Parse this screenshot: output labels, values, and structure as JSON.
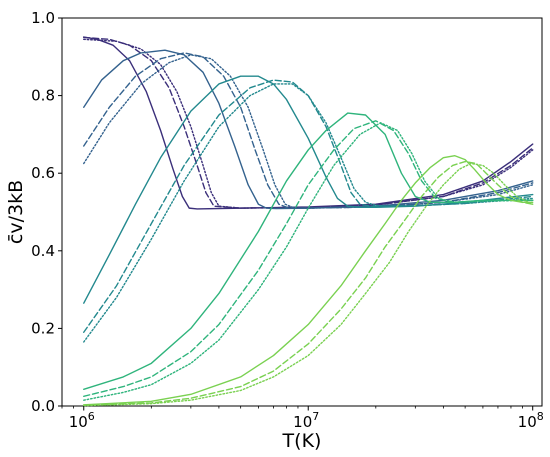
{
  "chart_data": {
    "type": "line",
    "xlabel": "T(K)",
    "ylabel": "c̄v/3kB",
    "xscale": "log",
    "xlim": [
      800000,
      110000000
    ],
    "ylim": [
      0.0,
      1.0
    ],
    "grid": false,
    "x_ticks": [
      {
        "value": 1000000,
        "base": "10",
        "exp": "6"
      },
      {
        "value": 10000000,
        "base": "10",
        "exp": "7"
      },
      {
        "value": 100000000,
        "base": "10",
        "exp": "8"
      }
    ],
    "y_ticks": [
      {
        "value": 0.0,
        "label": "0.0"
      },
      {
        "value": 0.2,
        "label": "0.2"
      },
      {
        "value": 0.4,
        "label": "0.4"
      },
      {
        "value": 0.6,
        "label": "0.6"
      },
      {
        "value": 0.8,
        "label": "0.8"
      },
      {
        "value": 1.0,
        "label": "1.0"
      }
    ],
    "series": [
      {
        "color": "#3b2f7a",
        "dash": "solid",
        "x": [
          1000000,
          1150000,
          1350000,
          1600000,
          1900000,
          2200000,
          2500000,
          2750000,
          2950000,
          3200000,
          5000000,
          10000000,
          20000000,
          40000000,
          60000000,
          80000000,
          100000000
        ],
        "y": [
          0.951,
          0.945,
          0.93,
          0.89,
          0.81,
          0.71,
          0.61,
          0.54,
          0.51,
          0.508,
          0.51,
          0.513,
          0.52,
          0.545,
          0.58,
          0.63,
          0.675
        ]
      },
      {
        "color": "#3b2f7a",
        "dash": "dashed",
        "x": [
          1000000,
          1300000,
          1600000,
          2000000,
          2400000,
          2800000,
          3200000,
          3500000,
          3800000,
          5000000,
          10000000,
          20000000,
          40000000,
          60000000,
          80000000,
          100000000
        ],
        "y": [
          0.95,
          0.945,
          0.93,
          0.89,
          0.82,
          0.72,
          0.62,
          0.55,
          0.515,
          0.51,
          0.512,
          0.518,
          0.54,
          0.575,
          0.62,
          0.665
        ]
      },
      {
        "color": "#3b2f7a",
        "dash": "dotted",
        "x": [
          1000000,
          1400000,
          1800000,
          2200000,
          2600000,
          3000000,
          3400000,
          3700000,
          4000000,
          5000000,
          10000000,
          20000000,
          40000000,
          60000000,
          80000000,
          100000000
        ],
        "y": [
          0.945,
          0.94,
          0.92,
          0.88,
          0.81,
          0.72,
          0.62,
          0.55,
          0.515,
          0.51,
          0.512,
          0.518,
          0.54,
          0.57,
          0.615,
          0.66
        ]
      },
      {
        "color": "#34628e",
        "dash": "solid",
        "x": [
          1000000,
          1200000,
          1500000,
          1800000,
          2300000,
          2800000,
          3400000,
          4000000,
          4700000,
          5400000,
          6000000,
          6500000,
          7200000,
          10000000,
          20000000,
          40000000,
          70000000,
          100000000
        ],
        "y": [
          0.77,
          0.84,
          0.89,
          0.91,
          0.917,
          0.905,
          0.86,
          0.78,
          0.67,
          0.57,
          0.52,
          0.51,
          0.509,
          0.51,
          0.515,
          0.53,
          0.555,
          0.58
        ]
      },
      {
        "color": "#34628e",
        "dash": "dashed",
        "x": [
          1000000,
          1300000,
          1700000,
          2200000,
          2800000,
          3400000,
          4200000,
          5000000,
          5800000,
          6600000,
          7400000,
          8200000,
          10000000,
          20000000,
          40000000,
          70000000,
          100000000
        ],
        "y": [
          0.67,
          0.77,
          0.85,
          0.895,
          0.91,
          0.9,
          0.85,
          0.77,
          0.66,
          0.57,
          0.52,
          0.51,
          0.51,
          0.513,
          0.525,
          0.55,
          0.575
        ]
      },
      {
        "color": "#34628e",
        "dash": "dotted",
        "x": [
          1000000,
          1300000,
          1800000,
          2400000,
          3000000,
          3700000,
          4500000,
          5400000,
          6300000,
          7100000,
          7900000,
          8700000,
          10000000,
          20000000,
          40000000,
          70000000,
          100000000
        ],
        "y": [
          0.625,
          0.73,
          0.83,
          0.885,
          0.905,
          0.895,
          0.85,
          0.77,
          0.66,
          0.57,
          0.52,
          0.51,
          0.51,
          0.513,
          0.525,
          0.545,
          0.57
        ]
      },
      {
        "color": "#23898e",
        "dash": "solid",
        "x": [
          1000000,
          1300000,
          1700000,
          2200000,
          3000000,
          4000000,
          5000000,
          6000000,
          7000000,
          8000000,
          10000000,
          12000000,
          13500000,
          15000000,
          17000000,
          20000000,
          30000000,
          50000000,
          100000000
        ],
        "y": [
          0.265,
          0.39,
          0.52,
          0.64,
          0.76,
          0.83,
          0.85,
          0.85,
          0.83,
          0.79,
          0.69,
          0.59,
          0.535,
          0.515,
          0.512,
          0.512,
          0.515,
          0.525,
          0.545
        ]
      },
      {
        "color": "#23898e",
        "dash": "dashed",
        "x": [
          1000000,
          1400000,
          2000000,
          2800000,
          4000000,
          5500000,
          7000000,
          8500000,
          10000000,
          12000000,
          14000000,
          15500000,
          17000000,
          19000000,
          22000000,
          30000000,
          50000000,
          100000000
        ],
        "y": [
          0.19,
          0.31,
          0.47,
          0.62,
          0.75,
          0.82,
          0.84,
          0.835,
          0.8,
          0.72,
          0.62,
          0.55,
          0.52,
          0.515,
          0.515,
          0.516,
          0.522,
          0.54
        ]
      },
      {
        "color": "#23898e",
        "dash": "dotted",
        "x": [
          1000000,
          1400000,
          2000000,
          2800000,
          4000000,
          5500000,
          7000000,
          8500000,
          10000000,
          12000000,
          14000000,
          16000000,
          18000000,
          20000000,
          23000000,
          30000000,
          50000000,
          100000000
        ],
        "y": [
          0.165,
          0.28,
          0.43,
          0.58,
          0.72,
          0.8,
          0.83,
          0.83,
          0.8,
          0.73,
          0.64,
          0.56,
          0.525,
          0.517,
          0.515,
          0.516,
          0.522,
          0.535
        ]
      },
      {
        "color": "#2fb47c",
        "dash": "solid",
        "x": [
          1000000,
          1500000,
          2000000,
          3000000,
          4000000,
          6000000,
          8000000,
          10000000,
          12000000,
          15000000,
          18000000,
          22000000,
          26000000,
          30000000,
          35000000,
          45000000,
          60000000,
          100000000
        ],
        "y": [
          0.043,
          0.075,
          0.11,
          0.2,
          0.29,
          0.45,
          0.58,
          0.66,
          0.71,
          0.755,
          0.75,
          0.7,
          0.6,
          0.54,
          0.525,
          0.525,
          0.53,
          0.53
        ]
      },
      {
        "color": "#2fb47c",
        "dash": "dashed",
        "x": [
          1000000,
          1500000,
          2000000,
          3000000,
          4000000,
          6000000,
          8000000,
          10000000,
          13000000,
          16000000,
          20000000,
          24000000,
          28000000,
          32000000,
          37000000,
          45000000,
          60000000,
          100000000
        ],
        "y": [
          0.025,
          0.05,
          0.075,
          0.14,
          0.21,
          0.35,
          0.47,
          0.57,
          0.66,
          0.715,
          0.735,
          0.71,
          0.65,
          0.58,
          0.535,
          0.525,
          0.53,
          0.53
        ]
      },
      {
        "color": "#2fb47c",
        "dash": "dotted",
        "x": [
          1000000,
          1500000,
          2000000,
          3000000,
          4000000,
          6000000,
          8000000,
          10000000,
          13000000,
          17000000,
          21000000,
          25000000,
          29000000,
          33000000,
          38000000,
          45000000,
          60000000,
          100000000
        ],
        "y": [
          0.015,
          0.035,
          0.055,
          0.11,
          0.17,
          0.3,
          0.41,
          0.51,
          0.62,
          0.7,
          0.73,
          0.71,
          0.65,
          0.58,
          0.535,
          0.525,
          0.528,
          0.53
        ]
      },
      {
        "color": "#7ad151",
        "dash": "solid",
        "x": [
          1000000,
          2000000,
          3000000,
          5000000,
          7000000,
          10000000,
          14000000,
          18000000,
          22000000,
          26000000,
          30000000,
          35000000,
          40000000,
          45000000,
          50000000,
          55000000,
          62000000,
          70000000,
          80000000,
          90000000,
          100000000
        ],
        "y": [
          0.003,
          0.012,
          0.03,
          0.075,
          0.13,
          0.21,
          0.31,
          0.4,
          0.47,
          0.53,
          0.575,
          0.615,
          0.64,
          0.645,
          0.635,
          0.61,
          0.575,
          0.545,
          0.53,
          0.525,
          0.525
        ]
      },
      {
        "color": "#7ad151",
        "dash": "dashed",
        "x": [
          1000000,
          2000000,
          3000000,
          5000000,
          7000000,
          10000000,
          14000000,
          18000000,
          22000000,
          27000000,
          32000000,
          38000000,
          44000000,
          50000000,
          56000000,
          62000000,
          70000000,
          80000000,
          90000000,
          100000000
        ],
        "y": [
          0.002,
          0.008,
          0.02,
          0.05,
          0.09,
          0.16,
          0.25,
          0.33,
          0.41,
          0.48,
          0.54,
          0.59,
          0.62,
          0.63,
          0.625,
          0.6,
          0.57,
          0.54,
          0.525,
          0.52
        ]
      },
      {
        "color": "#7ad151",
        "dash": "dotted",
        "x": [
          1000000,
          2000000,
          3000000,
          5000000,
          7000000,
          10000000,
          14000000,
          18000000,
          23000000,
          28000000,
          34000000,
          40000000,
          47000000,
          53000000,
          60000000,
          67000000,
          75000000,
          85000000,
          100000000
        ],
        "y": [
          0.001,
          0.006,
          0.015,
          0.04,
          0.075,
          0.13,
          0.21,
          0.29,
          0.37,
          0.45,
          0.52,
          0.57,
          0.61,
          0.625,
          0.62,
          0.6,
          0.57,
          0.54,
          0.52
        ]
      }
    ]
  }
}
